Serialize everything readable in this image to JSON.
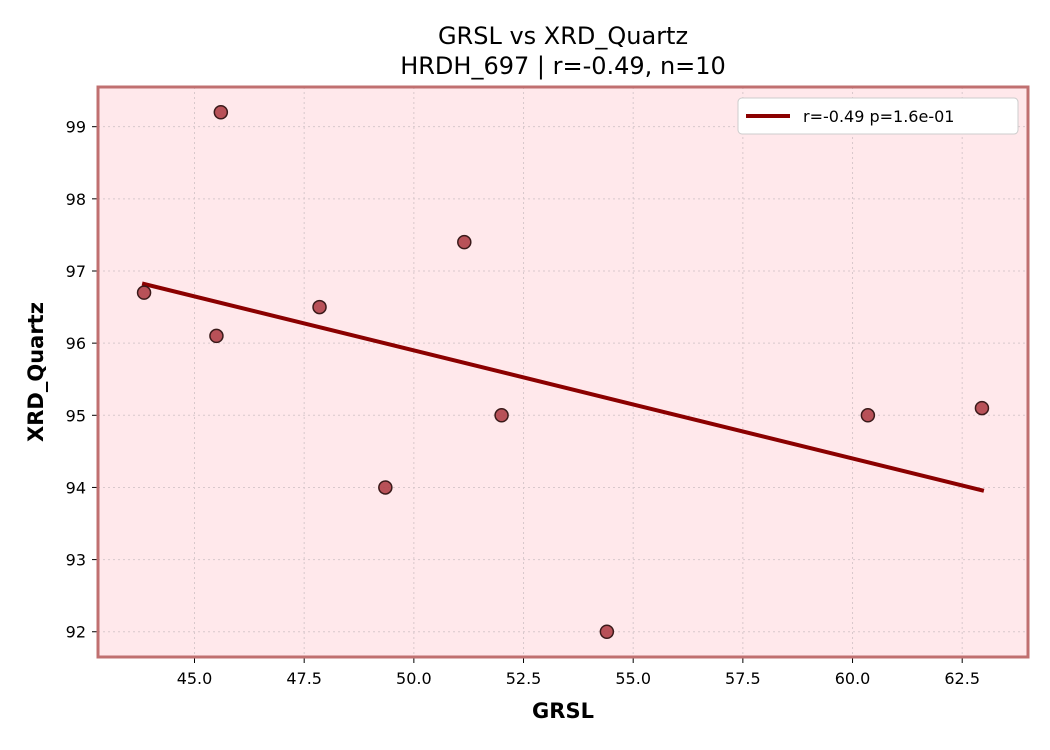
{
  "chart_data": {
    "type": "scatter",
    "title": "GRSL vs XRD_Quartz",
    "subtitle": "HRDH_697 | r=-0.49, n=10",
    "xlabel": "GRSL",
    "ylabel": "XRD_Quartz",
    "xlim": [
      42.8,
      64.0
    ],
    "ylim": [
      91.65,
      99.55
    ],
    "x_ticks": [
      45.0,
      47.5,
      50.0,
      52.5,
      55.0,
      57.5,
      60.0,
      62.5
    ],
    "x_tick_labels": [
      "45.0",
      "47.5",
      "50.0",
      "52.5",
      "55.0",
      "57.5",
      "60.0",
      "62.5"
    ],
    "y_ticks": [
      92,
      93,
      94,
      95,
      96,
      97,
      98,
      99
    ],
    "y_tick_labels": [
      "92",
      "93",
      "94",
      "95",
      "96",
      "97",
      "98",
      "99"
    ],
    "grid": true,
    "legend_position": "top-right",
    "points": [
      {
        "x": 43.85,
        "y": 96.7
      },
      {
        "x": 45.5,
        "y": 96.1
      },
      {
        "x": 45.6,
        "y": 99.2
      },
      {
        "x": 47.85,
        "y": 96.5
      },
      {
        "x": 49.35,
        "y": 94.0
      },
      {
        "x": 51.15,
        "y": 97.4
      },
      {
        "x": 52.0,
        "y": 95.0
      },
      {
        "x": 54.4,
        "y": 92.0
      },
      {
        "x": 60.35,
        "y": 95.0
      },
      {
        "x": 62.95,
        "y": 95.1
      }
    ],
    "fit_line": {
      "label": "r=-0.49  p=1.6e-01",
      "x": [
        43.85,
        62.95
      ],
      "y": [
        96.82,
        93.96
      ]
    },
    "colors": {
      "background": "#ffe8eb",
      "border": "#c07070",
      "point_fill": "#b04048",
      "point_edge": "#3a1a1a",
      "fit_line": "#8b0000",
      "grid": "#d8c8cc"
    }
  }
}
